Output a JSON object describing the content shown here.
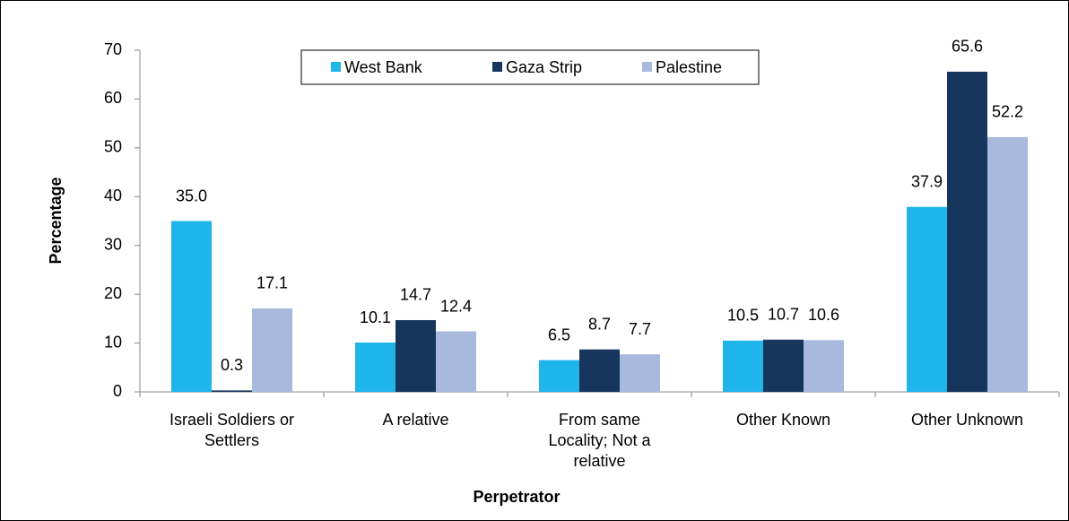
{
  "chart_data": {
    "type": "bar",
    "categories": [
      "Israeli Soldiers or Settlers",
      "A relative",
      "From same Locality; Not a relative",
      "Other Known",
      "Other Unknown"
    ],
    "series": [
      {
        "name": "West Bank",
        "color": "#1fb4ea",
        "values": [
          35.0,
          10.1,
          6.5,
          10.5,
          37.9
        ],
        "value_labels": [
          "35.0",
          "10.1",
          "6.5",
          "10.5",
          "37.9"
        ]
      },
      {
        "name": "Gaza Strip",
        "color": "#17365d",
        "values": [
          0.3,
          14.7,
          8.7,
          10.7,
          65.6
        ],
        "value_labels": [
          "0.3",
          "14.7",
          "8.7",
          "10.7",
          "65.6"
        ]
      },
      {
        "name": "Palestine",
        "color": "#a7b9dc",
        "values": [
          17.1,
          12.4,
          7.7,
          10.6,
          52.2
        ],
        "value_labels": [
          "17.1",
          "12.4",
          "7.7",
          "10.6",
          "52.2"
        ]
      }
    ],
    "ylim": [
      0,
      70
    ],
    "yticks": [
      0,
      10,
      20,
      30,
      40,
      50,
      60,
      70
    ],
    "ylabel": "Percentage",
    "xlabel": "Perpetrator",
    "legend": "top"
  }
}
